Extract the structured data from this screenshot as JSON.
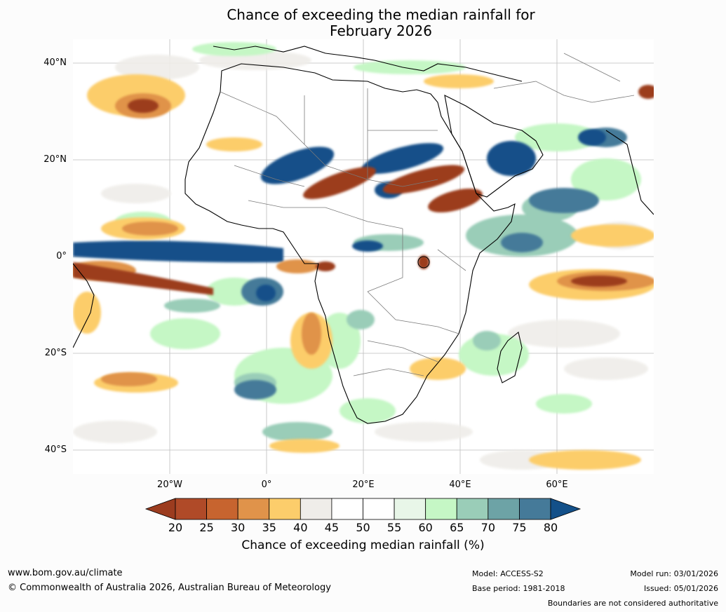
{
  "title": {
    "line1": "Chance of exceeding the median rainfall for",
    "line2": "February 2026"
  },
  "map": {
    "lat_labels": [
      "40°N",
      "20°N",
      "0°",
      "20°S",
      "40°S"
    ],
    "lon_labels": [
      "20°W",
      "0°",
      "20°E",
      "40°E",
      "60°E"
    ],
    "extent": {
      "lon_min": -40,
      "lon_max": 80,
      "lat_min": -45,
      "lat_max": 45
    }
  },
  "colorbar": {
    "ticks": [
      "20",
      "25",
      "30",
      "35",
      "40",
      "45",
      "50",
      "55",
      "60",
      "65",
      "70",
      "75",
      "80"
    ],
    "colors": [
      "#9c3c1f",
      "#b04a28",
      "#c7642f",
      "#e0934a",
      "#fccd6b",
      "#efede9",
      "#ffffff",
      "#ffffff",
      "#e8f6e8",
      "#c5f7c5",
      "#9acdb8",
      "#6da3a6",
      "#457a99",
      "#135089"
    ],
    "label": "Chance of exceeding median rainfall (%)"
  },
  "footer": {
    "url": "www.bom.gov.au/climate",
    "copyright": "© Commonwealth of Australia 2026, Australian Bureau of Meteorology",
    "model": "Model: ACCESS-S2",
    "base_period": "Base period: 1981-2018",
    "model_run": "Model run: 03/01/2026",
    "issued": "Issued: 05/01/2026",
    "disclaimer": "Boundaries are not considered authoritative"
  }
}
